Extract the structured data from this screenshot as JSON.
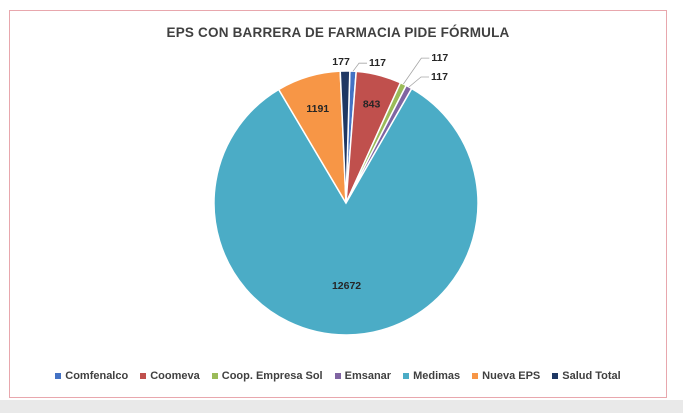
{
  "chart_data": {
    "type": "pie",
    "title": "EPS CON BARRERA DE FARMACIA PIDE FÓRMULA",
    "categories": [
      "Comfenalco",
      "Coomeva",
      "Coop. Empresa Sol",
      "Emsanar",
      "Medimas",
      "Nueva EPS",
      "Salud Total"
    ],
    "values": [
      117,
      843,
      117,
      117,
      12672,
      1191,
      177
    ],
    "colors": [
      "#4472c4",
      "#c0504d",
      "#9bbb59",
      "#8064a2",
      "#4bacc6",
      "#f79646",
      "#1f3864"
    ],
    "legend_position": "bottom",
    "data_labels": true
  }
}
